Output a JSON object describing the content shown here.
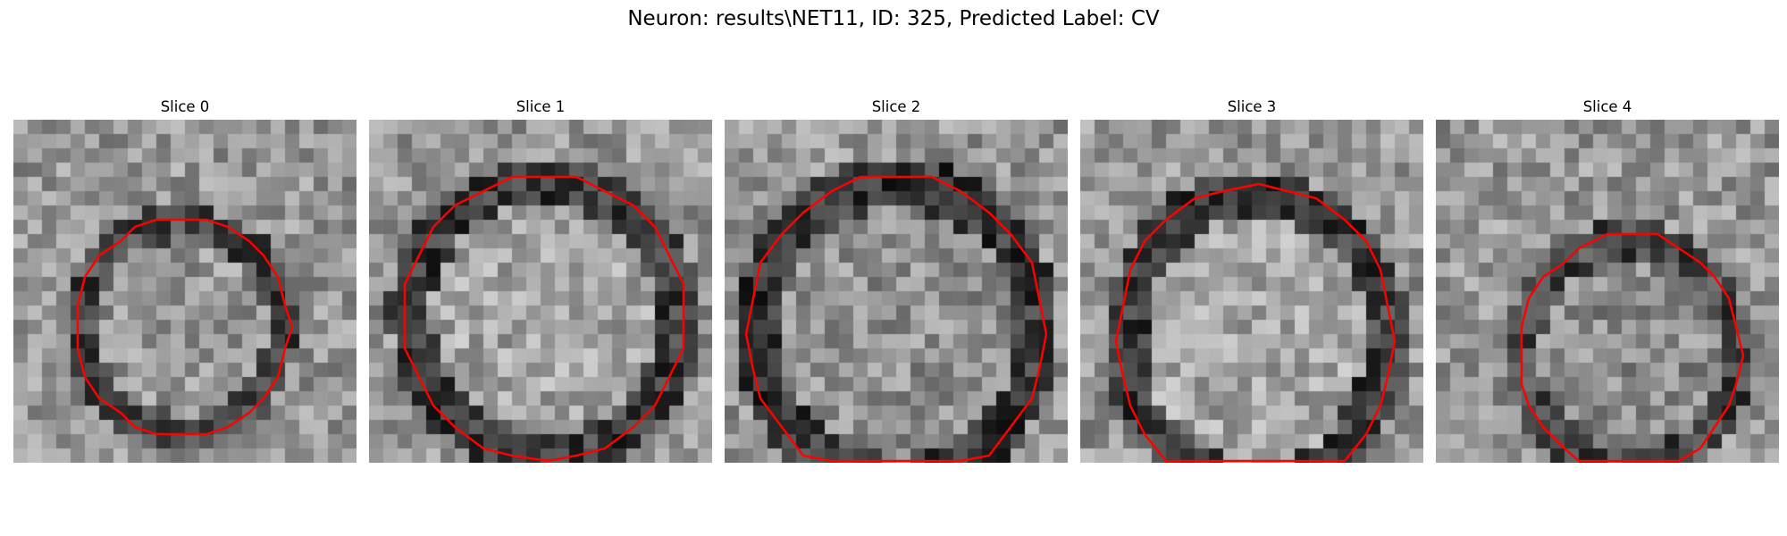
{
  "figure": {
    "title": "Neuron: results\\NET11, ID: 325, Predicted Label: CV"
  },
  "contour_color": "#ff0000",
  "image_colormap": "gray",
  "panels": [
    {
      "label": "Slice 0"
    },
    {
      "label": "Slice 1"
    },
    {
      "label": "Slice 2"
    },
    {
      "label": "Slice 3"
    },
    {
      "label": "Slice 4"
    }
  ]
}
